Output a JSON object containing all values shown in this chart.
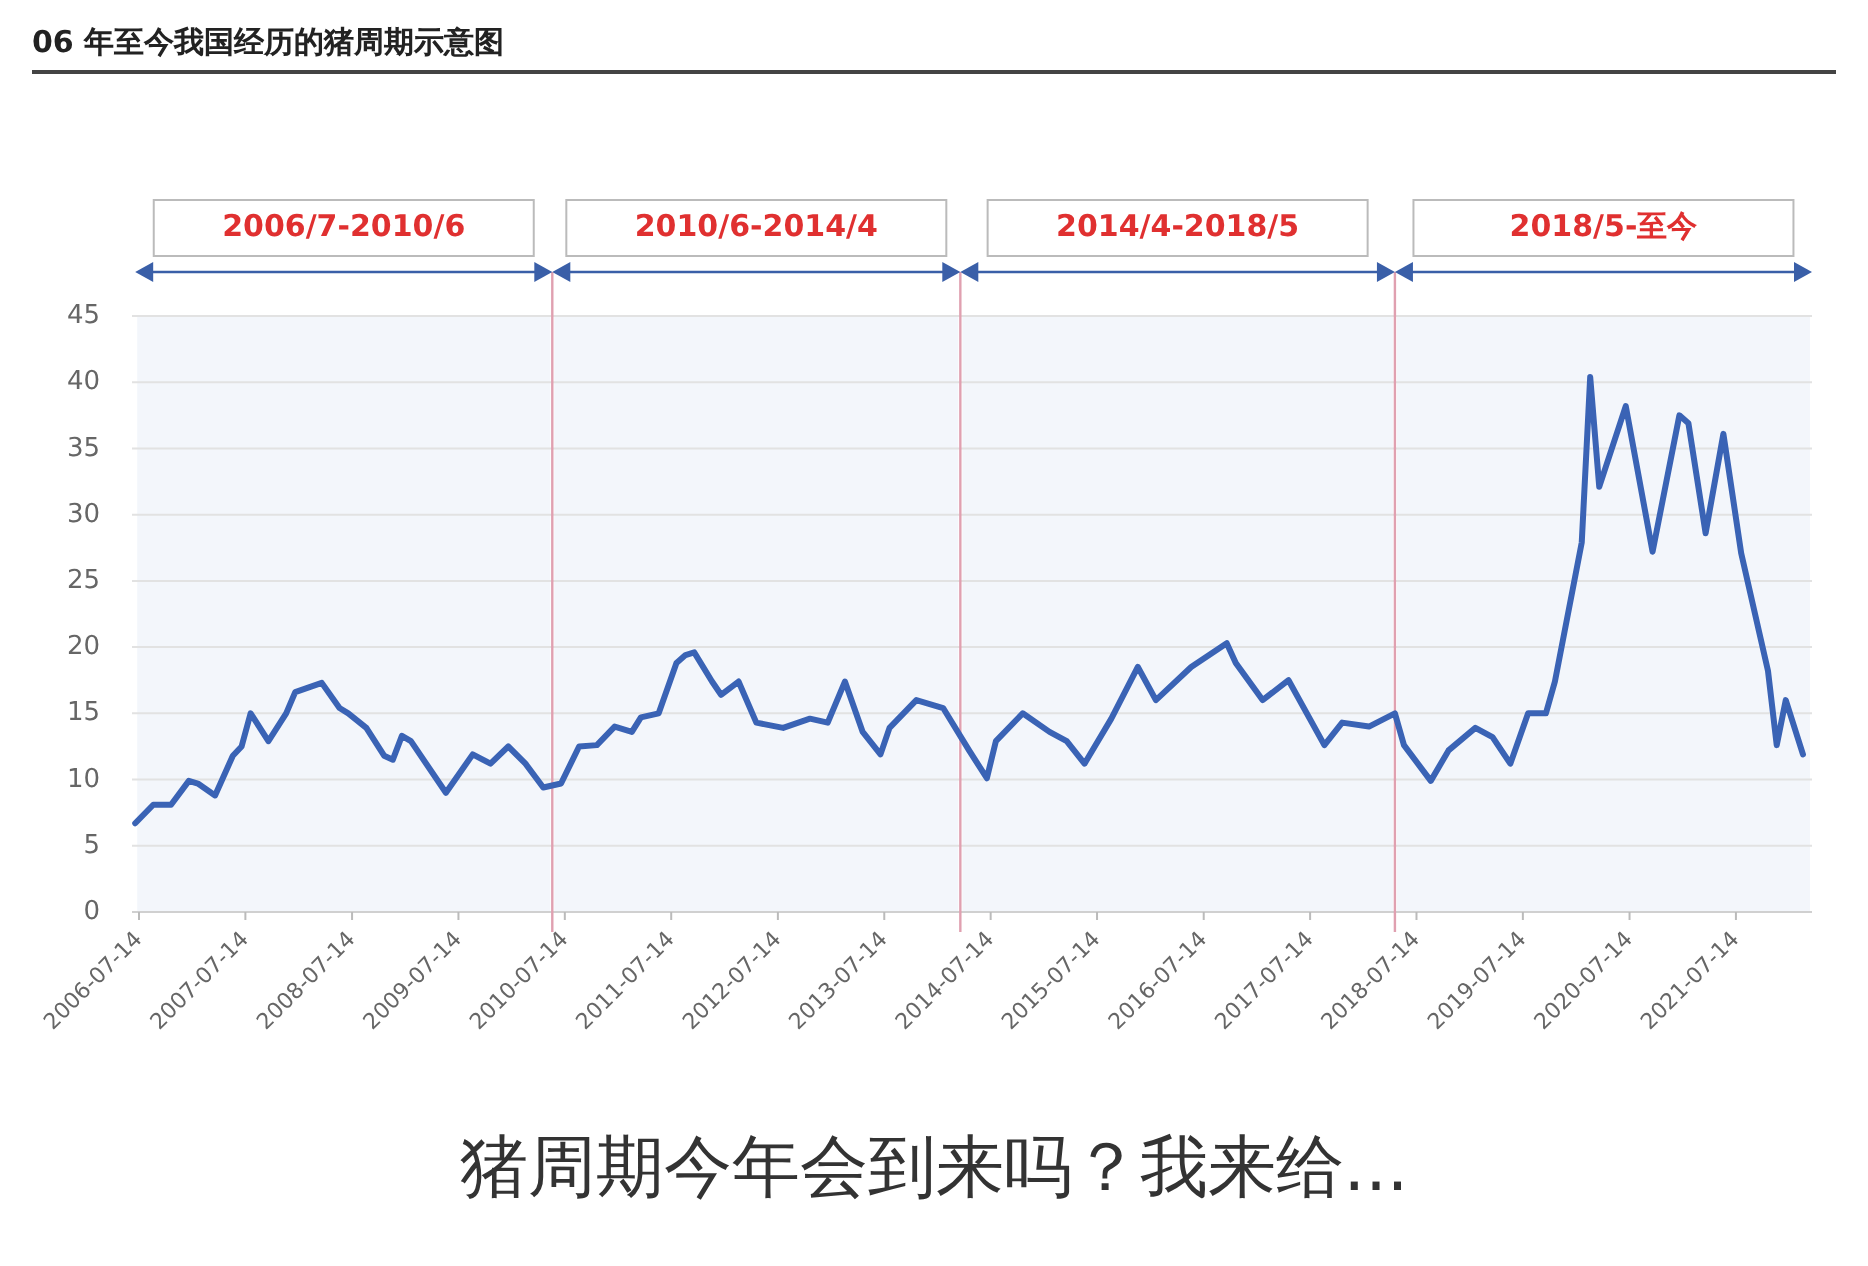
{
  "chart_data": {
    "type": "line",
    "title": "06 年至今我国经历的猪周期示意图",
    "x": [
      "2006-07",
      "2006-09",
      "2006-11",
      "2007-01",
      "2007-02",
      "2007-04",
      "2007-06",
      "2007-07",
      "2007-08",
      "2007-10",
      "2007-12",
      "2008-01",
      "2008-04",
      "2008-06",
      "2008-07",
      "2008-09",
      "2008-11",
      "2008-12",
      "2009-01",
      "2009-02",
      "2009-06",
      "2009-09",
      "2009-11",
      "2010-01",
      "2010-03",
      "2010-05",
      "2010-07",
      "2010-09",
      "2010-11",
      "2011-01",
      "2011-03",
      "2011-04",
      "2011-06",
      "2011-08",
      "2011-09",
      "2011-10",
      "2011-12",
      "2012-01",
      "2012-03",
      "2012-05",
      "2012-08",
      "2012-11",
      "2013-01",
      "2013-03",
      "2013-05",
      "2013-07",
      "2013-08",
      "2013-11",
      "2014-02",
      "2014-05",
      "2014-07",
      "2014-08",
      "2014-11",
      "2015-02",
      "2015-04",
      "2015-06",
      "2015-09",
      "2015-12",
      "2016-02",
      "2016-06",
      "2016-10",
      "2016-11",
      "2017-02",
      "2017-05",
      "2017-09",
      "2017-11",
      "2018-02",
      "2018-05",
      "2018-06",
      "2018-09",
      "2018-11",
      "2019-02",
      "2019-04",
      "2019-06",
      "2019-08",
      "2019-10",
      "2019-11",
      "2020-02",
      "2020-03",
      "2020-04",
      "2020-07",
      "2020-10",
      "2021-01",
      "2021-02",
      "2021-04",
      "2021-06",
      "2021-08",
      "2021-11",
      "2021-12",
      "2022-01",
      "2022-03"
    ],
    "series": [
      {
        "color": "#3a63b5",
        "values": [
          6.7,
          8.1,
          8.1,
          9.9,
          9.7,
          8.8,
          11.8,
          12.5,
          15,
          12.9,
          15,
          16.6,
          17.3,
          15.4,
          15,
          13.9,
          11.8,
          11.5,
          13.3,
          12.9,
          9,
          11.9,
          11.2,
          12.5,
          11.2,
          9.4,
          9.7,
          12.5,
          12.6,
          14,
          13.6,
          14.7,
          15,
          18.8,
          19.4,
          19.6,
          17.4,
          16.4,
          17.4,
          14.3,
          13.9,
          14.6,
          14.3,
          17.4,
          13.6,
          11.9,
          13.9,
          16,
          15.4,
          12.2,
          10.1,
          12.9,
          15,
          13.6,
          12.9,
          11.2,
          14.6,
          18.5,
          16,
          18.5,
          20.3,
          18.8,
          16,
          17.5,
          12.6,
          14.3,
          14,
          15,
          12.6,
          9.9,
          12.2,
          13.9,
          13.2,
          11.2,
          15,
          15,
          17.4,
          27.9,
          40.4,
          32.1,
          38.2,
          27.2,
          37.5,
          36.9,
          28.6,
          36.1,
          27.1,
          18.2,
          12.6,
          16,
          11.9
        ]
      }
    ],
    "xlim": [
      "2006-06-20",
      "2022-04-01"
    ],
    "xticks": [
      "2006-07-14",
      "2007-07-14",
      "2008-07-14",
      "2009-07-14",
      "2010-07-14",
      "2011-07-14",
      "2012-07-14",
      "2013-07-14",
      "2014-07-14",
      "2015-07-14",
      "2016-07-14",
      "2017-07-14",
      "2018-07-14",
      "2019-07-14",
      "2020-07-14",
      "2021-07-14"
    ],
    "ylim": [
      0,
      45
    ],
    "yticks": [
      0,
      5,
      10,
      15,
      20,
      25,
      30,
      35,
      40,
      45
    ],
    "grid": "y",
    "ref_lines": [
      {
        "axis": "x",
        "value": "2010-06",
        "color": "#e0a0b0"
      },
      {
        "axis": "x",
        "value": "2014-04",
        "color": "#e0a0b0"
      },
      {
        "axis": "x",
        "value": "2018-05",
        "color": "#e0a0b0"
      }
    ],
    "bands": [
      {
        "axis": "x",
        "from": "2006-07",
        "to": "2010-06",
        "label": "2006/7-2010/6",
        "color": "#f3f6fb"
      },
      {
        "axis": "x",
        "from": "2010-06",
        "to": "2014-04",
        "label": "2010/6-2014/4",
        "color": "#f3f6fb"
      },
      {
        "axis": "x",
        "from": "2014-04",
        "to": "2018-05",
        "label": "2014/4-2018/5",
        "color": "#f3f6fb"
      },
      {
        "axis": "x",
        "from": "2018-05",
        "to": "2022-04-01",
        "label": "2018/5-至今",
        "color": "#f3f6fb"
      }
    ],
    "annotations": [
      "猪周期今年会到来吗？我来给..."
    ]
  }
}
